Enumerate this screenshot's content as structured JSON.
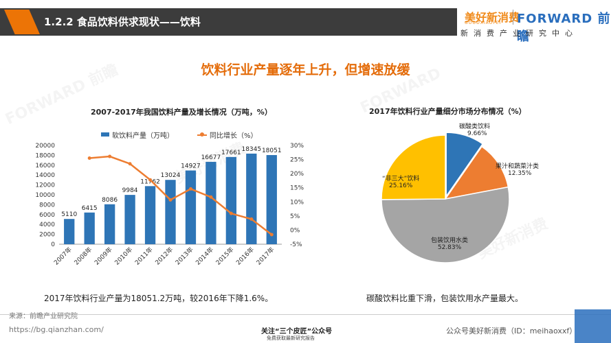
{
  "header": {
    "title": "1.2.2 食品饮料供求现状——饮料",
    "brand_cn": "美好新消费",
    "brand_sub": "GOODXIAOFEI",
    "brand_en": "FORWARD 前瞻",
    "brand_center": "新消费产业研究中心"
  },
  "headline": "饮料行业产量逐年上升，但增速放缓",
  "left_chart": {
    "title": "2007-2017年我国饮料产量及增长情况（万吨，%）",
    "legend_bar": "软饮料产量（万吨）",
    "legend_line": "同比增长（%）",
    "caption": "2017年饮料行业产量为18051.2万吨，较2016年下降1.6%。"
  },
  "right_chart": {
    "title": "2017年饮料行业产量细分市场分布情况（%）",
    "caption": "碳酸饮料比重下滑，包装饮用水产量最大。",
    "labels": [
      {
        "name": "碳酸类饮料",
        "value": "9.66%"
      },
      {
        "name": "果汁和蔬菜汁类",
        "value": "12.35%"
      },
      {
        "name": "包装饮用水类",
        "value": "52.83%"
      },
      {
        "name": "“非三大”饮料",
        "value": "25.16%"
      }
    ]
  },
  "chart_data": [
    {
      "type": "bar",
      "title": "2007-2017年我国饮料产量及增长情况（万吨，%）",
      "categories": [
        "2007年",
        "2008年",
        "2009年",
        "2010年",
        "2011年",
        "2012年",
        "2013年",
        "2014年",
        "2015年",
        "2016年",
        "2017年"
      ],
      "series": [
        {
          "name": "软饮料产量（万吨）",
          "type": "bar",
          "axis": "left",
          "color": "#2e75b6",
          "values": [
            5110,
            6415,
            8086,
            9984,
            11762,
            13024,
            14927,
            16677,
            17661,
            18345,
            18051
          ]
        },
        {
          "name": "同比增长（%）",
          "type": "line",
          "axis": "right",
          "color": "#ed7d31",
          "values": [
            null,
            25.5,
            26.1,
            23.5,
            17.8,
            10.7,
            14.6,
            11.7,
            5.9,
            3.9,
            -1.6
          ]
        }
      ],
      "ylim_left": [
        0,
        20000
      ],
      "yticks_left": [
        0,
        2000,
        4000,
        6000,
        8000,
        10000,
        12000,
        14000,
        16000,
        18000,
        20000
      ],
      "ylim_right": [
        -5,
        30
      ],
      "yticks_right": [
        "-5%",
        "0%",
        "5%",
        "10%",
        "15%",
        "20%",
        "25%",
        "30%"
      ],
      "legend": "top"
    },
    {
      "type": "pie",
      "title": "2017年饮料行业产量细分市场分布情况（%）",
      "categories": [
        "碳酸类饮料",
        "果汁和蔬菜汁类",
        "包装饮用水类",
        "“非三大”饮料"
      ],
      "values": [
        9.66,
        12.35,
        52.83,
        25.16
      ],
      "colors": [
        "#2e75b6",
        "#ed7d31",
        "#a5a5a5",
        "#ffc000"
      ]
    }
  ],
  "footer": {
    "source": "来源：前瞻产业研究院",
    "url": "https://bg.qianzhan.com/",
    "mid1": "关注“三个皮匠”公众号",
    "mid2": "免费获取最新研究报告",
    "right": "公众号美好新消费（ID：meihaoxxf）"
  }
}
